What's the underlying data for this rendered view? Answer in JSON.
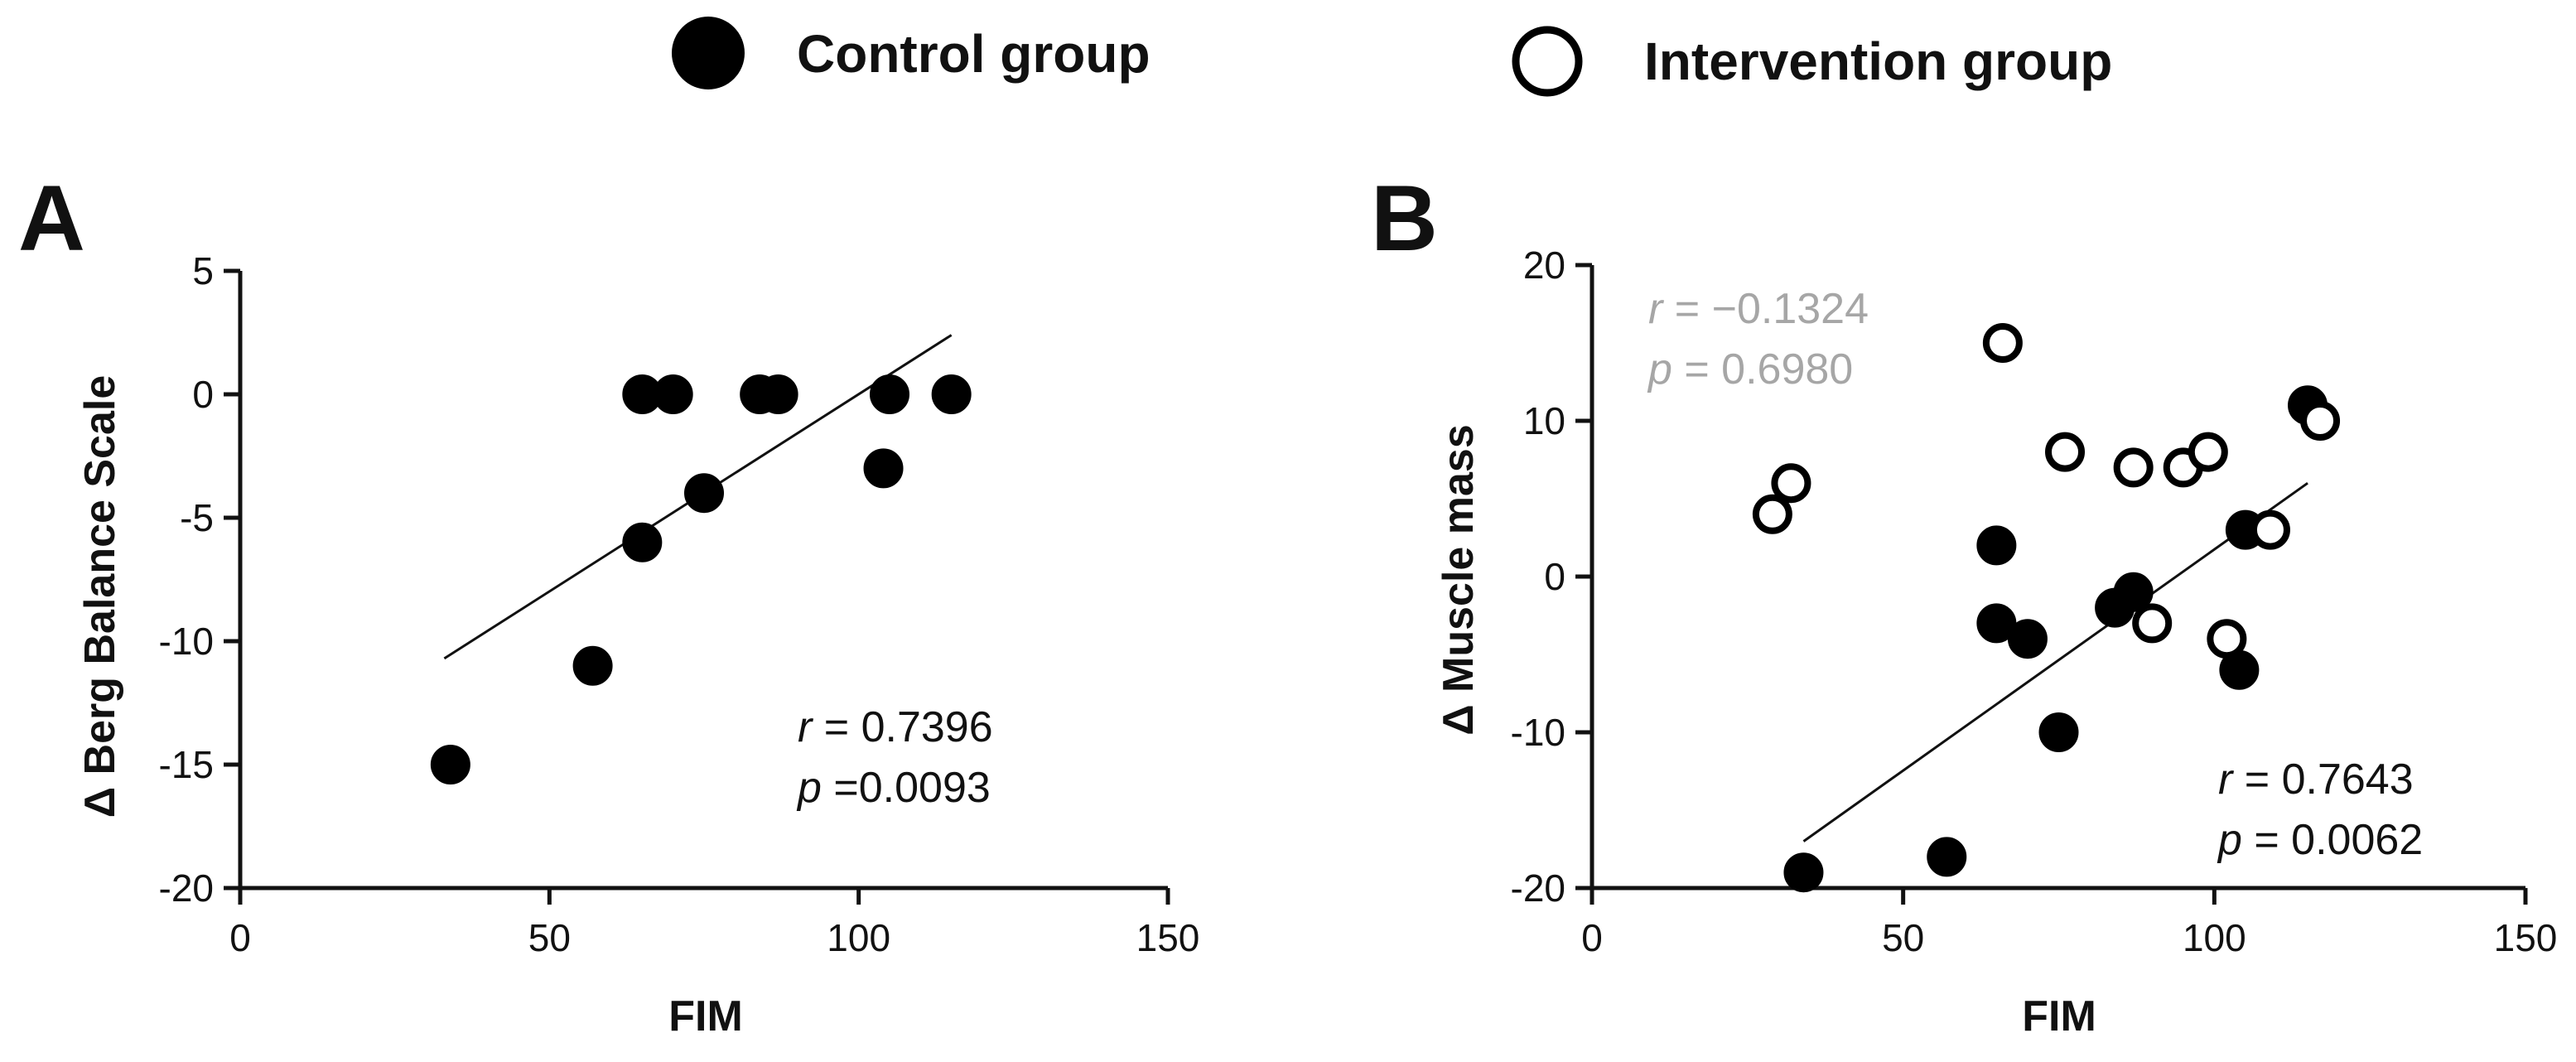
{
  "legend": [
    {
      "label": "Control group",
      "marker": "filled-circle"
    },
    {
      "label": "Intervention group",
      "marker": "open-circle"
    }
  ],
  "colors": {
    "ink": "#111111",
    "filled_point": "#000000",
    "open_point_fill": "#ffffff",
    "stat_gray": "#a6a6a6"
  },
  "chart_data": [
    {
      "type": "scatter",
      "panel_label": "A",
      "xlabel": "FIM",
      "ylabel": "Δ Berg Balance Scale",
      "xlim": [
        0,
        150
      ],
      "ylim": [
        -20,
        5
      ],
      "x_ticks": [
        0,
        50,
        100,
        150
      ],
      "y_ticks": [
        5,
        0,
        -5,
        -10,
        -15,
        -20
      ],
      "series": [
        {
          "name": "Control group",
          "marker": "filled",
          "points": [
            [
              34,
              -15
            ],
            [
              57,
              -11
            ],
            [
              65,
              -6
            ],
            [
              65,
              0
            ],
            [
              70,
              0
            ],
            [
              75,
              -4
            ],
            [
              84,
              0
            ],
            [
              87,
              0
            ],
            [
              104,
              -3
            ],
            [
              105,
              0
            ],
            [
              115,
              0
            ]
          ]
        }
      ],
      "regression": {
        "x": [
          33,
          115
        ],
        "y": [
          -10.7,
          2.4
        ]
      },
      "stats": [
        {
          "var": "r",
          "rest": " = 0.7396",
          "color": "dark"
        },
        {
          "var": "p",
          "rest": " =0.0093",
          "color": "dark"
        }
      ]
    },
    {
      "type": "scatter",
      "panel_label": "B",
      "xlabel": "FIM",
      "ylabel": "Δ Muscle mass",
      "xlim": [
        0,
        150
      ],
      "ylim": [
        -20,
        20
      ],
      "x_ticks": [
        0,
        50,
        100,
        150
      ],
      "y_ticks": [
        20,
        10,
        0,
        -10,
        -20
      ],
      "series": [
        {
          "name": "Control group",
          "marker": "filled",
          "points": [
            [
              34,
              -19
            ],
            [
              57,
              -18
            ],
            [
              65,
              2
            ],
            [
              65,
              -3
            ],
            [
              70,
              -4
            ],
            [
              75,
              -10
            ],
            [
              84,
              -2
            ],
            [
              87,
              -1
            ],
            [
              104,
              -6
            ],
            [
              105,
              3
            ],
            [
              115,
              11
            ]
          ]
        },
        {
          "name": "Intervention group",
          "marker": "open",
          "points": [
            [
              29,
              4
            ],
            [
              32,
              6
            ],
            [
              66,
              15
            ],
            [
              76,
              8
            ],
            [
              87,
              7
            ],
            [
              90,
              -3
            ],
            [
              95,
              7
            ],
            [
              99,
              8
            ],
            [
              102,
              -4
            ],
            [
              109,
              3
            ],
            [
              117,
              10
            ]
          ]
        }
      ],
      "regression": {
        "x": [
          34,
          115
        ],
        "y": [
          -17,
          6
        ]
      },
      "stats": [
        {
          "var": "r",
          "rest": "  = −0.1324",
          "color": "gray",
          "group": "upper"
        },
        {
          "var": "p",
          "rest": " = 0.6980",
          "color": "gray",
          "group": "upper"
        },
        {
          "var": "r",
          "rest": "  = 0.7643",
          "color": "dark",
          "group": "lower"
        },
        {
          "var": "p",
          "rest": "  = 0.0062",
          "color": "dark",
          "group": "lower"
        }
      ]
    }
  ]
}
